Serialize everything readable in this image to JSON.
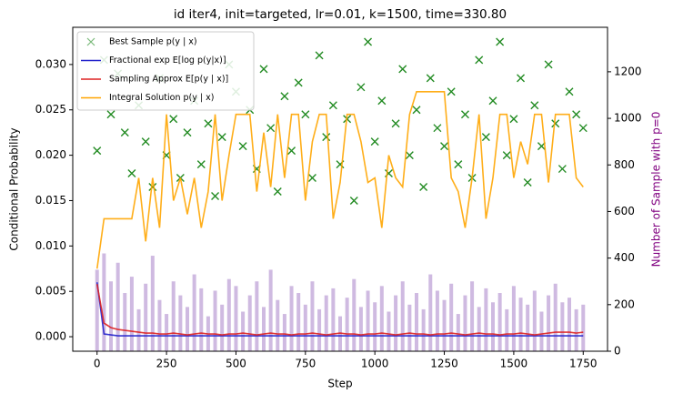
{
  "chart_data": {
    "type": "combo",
    "title": "id iter4, init=targeted, lr=0.01, k=1500, time=330.80",
    "x_label": "Step",
    "y_label": "Conditional Probability",
    "y2_label": "Number of Sample with p=0",
    "y2_label_color": "#800080",
    "xlim": [
      -87.5,
      1837.5
    ],
    "xticks": [
      0,
      250,
      500,
      750,
      1000,
      1250,
      1500,
      1750
    ],
    "ylim": [
      -0.0016,
      0.0341
    ],
    "yticks": [
      {
        "value": 0,
        "label": "0.000"
      },
      {
        "value": 0.005,
        "label": "0.005"
      },
      {
        "value": 0.01,
        "label": "0.010"
      },
      {
        "value": 0.015,
        "label": "0.015"
      },
      {
        "value": 0.02,
        "label": "0.020"
      },
      {
        "value": 0.025,
        "label": "0.025"
      },
      {
        "value": 0.03,
        "label": "0.030"
      }
    ],
    "y2lim": [
      0,
      1391
    ],
    "y2ticks": [
      0,
      200,
      400,
      600,
      800,
      1000,
      1200
    ],
    "legend": "upper left",
    "x": [
      0,
      25,
      50,
      75,
      100,
      125,
      150,
      175,
      200,
      225,
      250,
      275,
      300,
      325,
      350,
      375,
      400,
      425,
      450,
      475,
      500,
      525,
      550,
      575,
      600,
      625,
      650,
      675,
      700,
      725,
      750,
      775,
      800,
      825,
      850,
      875,
      900,
      925,
      950,
      975,
      1000,
      1025,
      1050,
      1075,
      1100,
      1125,
      1150,
      1175,
      1200,
      1225,
      1250,
      1275,
      1300,
      1325,
      1350,
      1375,
      1400,
      1425,
      1450,
      1475,
      1500,
      1525,
      1550,
      1575,
      1600,
      1625,
      1650,
      1675,
      1700,
      1725,
      1750
    ],
    "series": [
      {
        "kind": "bar",
        "axis": "y2",
        "color": "#9467bd",
        "values": [
          350,
          420,
          300,
          380,
          250,
          320,
          180,
          290,
          410,
          220,
          160,
          300,
          240,
          190,
          330,
          270,
          150,
          260,
          200,
          310,
          280,
          170,
          240,
          300,
          190,
          350,
          220,
          160,
          280,
          250,
          200,
          300,
          180,
          240,
          270,
          150,
          230,
          310,
          190,
          260,
          210,
          280,
          170,
          240,
          300,
          200,
          250,
          180,
          330,
          260,
          220,
          290,
          160,
          240,
          300,
          190,
          270,
          210,
          250,
          180,
          280,
          230,
          200,
          260,
          170,
          240,
          290,
          210,
          230,
          180,
          200
        ]
      },
      {
        "kind": "scatter",
        "name": "Best Sample p(y | x)",
        "color": "#228b22",
        "values": [
          0.0205,
          0.0305,
          0.0245,
          0.029,
          0.0225,
          0.018,
          0.0255,
          0.0215,
          0.0165,
          0.0285,
          0.02,
          0.024,
          0.0175,
          0.0225,
          0.026,
          0.019,
          0.0235,
          0.0155,
          0.022,
          0.03,
          0.027,
          0.021,
          0.025,
          0.0185,
          0.0295,
          0.023,
          0.016,
          0.0265,
          0.0205,
          0.028,
          0.0245,
          0.0175,
          0.031,
          0.022,
          0.0255,
          0.019,
          0.024,
          0.015,
          0.0275,
          0.0325,
          0.0215,
          0.026,
          0.018,
          0.0235,
          0.0295,
          0.02,
          0.025,
          0.0165,
          0.0285,
          0.023,
          0.021,
          0.027,
          0.019,
          0.0245,
          0.0175,
          0.0305,
          0.022,
          0.026,
          0.0325,
          0.02,
          0.024,
          0.0285,
          0.017,
          0.0255,
          0.021,
          0.03,
          0.0235,
          0.0185,
          0.027,
          0.0245,
          0.023
        ]
      },
      {
        "kind": "line",
        "name": "Fractional exp E[log p(y|x)]",
        "color": "#2222cc",
        "values": [
          0.006,
          0.0003,
          0.0002,
          0.0001,
          0.0001,
          0.0001,
          0.0001,
          0.0001,
          0.0001,
          0.0001,
          0.0001,
          0.0001,
          0.0001,
          0.0001,
          0.0001,
          0.0001,
          0.0001,
          0.0001,
          0.0001,
          0.0001,
          0.0001,
          0.0001,
          0.0001,
          0.0001,
          0.0001,
          0.0001,
          0.0001,
          0.0001,
          0.0001,
          0.0001,
          0.0001,
          0.0001,
          0.0001,
          0.0001,
          0.0001,
          0.0001,
          0.0001,
          0.0001,
          0.0001,
          0.0001,
          0.0001,
          0.0001,
          0.0001,
          0.0001,
          0.0001,
          0.0001,
          0.0001,
          0.0001,
          0.0001,
          0.0001,
          0.0001,
          0.0001,
          0.0001,
          0.0001,
          0.0001,
          0.0001,
          0.0001,
          0.0001,
          0.0001,
          0.0001,
          0.0001,
          0.0001,
          0.0001,
          0.0001,
          0.0001,
          0.0001,
          0.0001,
          0.0001,
          0.0001,
          0.0001,
          0.0001
        ]
      },
      {
        "kind": "line",
        "name": "Sampling Approx E[p(y | x)]",
        "color": "#dd2222",
        "values": [
          0.0058,
          0.0015,
          0.001,
          0.0008,
          0.0007,
          0.0006,
          0.0005,
          0.0004,
          0.0004,
          0.0003,
          0.0003,
          0.0004,
          0.0003,
          0.0002,
          0.0003,
          0.0004,
          0.0003,
          0.0003,
          0.0002,
          0.0003,
          0.0003,
          0.0004,
          0.0003,
          0.0002,
          0.0003,
          0.0004,
          0.0003,
          0.0003,
          0.0002,
          0.0003,
          0.0003,
          0.0004,
          0.0003,
          0.0002,
          0.0003,
          0.0004,
          0.0003,
          0.0003,
          0.0002,
          0.0003,
          0.0003,
          0.0004,
          0.0003,
          0.0002,
          0.0003,
          0.0004,
          0.0003,
          0.0003,
          0.0002,
          0.0003,
          0.0003,
          0.0004,
          0.0003,
          0.0002,
          0.0003,
          0.0004,
          0.0003,
          0.0003,
          0.0002,
          0.0003,
          0.0003,
          0.0004,
          0.0003,
          0.0002,
          0.0003,
          0.0004,
          0.0005,
          0.0005,
          0.0005,
          0.0004,
          0.0005
        ]
      },
      {
        "kind": "line",
        "name": "Integral Solution p(y | x)",
        "color": "#ffa500",
        "values": [
          0.0075,
          0.013,
          0.013,
          0.013,
          0.013,
          0.013,
          0.0175,
          0.0105,
          0.0175,
          0.012,
          0.0245,
          0.015,
          0.0175,
          0.0135,
          0.0175,
          0.012,
          0.016,
          0.0245,
          0.015,
          0.02,
          0.0245,
          0.0245,
          0.0245,
          0.016,
          0.0225,
          0.0165,
          0.0245,
          0.0175,
          0.0245,
          0.0245,
          0.015,
          0.0215,
          0.0245,
          0.0245,
          0.013,
          0.017,
          0.0245,
          0.0245,
          0.0215,
          0.017,
          0.0175,
          0.012,
          0.02,
          0.0175,
          0.0165,
          0.0245,
          0.027,
          0.027,
          0.027,
          0.027,
          0.027,
          0.0175,
          0.016,
          0.012,
          0.0175,
          0.0245,
          0.013,
          0.0175,
          0.0245,
          0.0245,
          0.0175,
          0.0215,
          0.019,
          0.0245,
          0.0245,
          0.017,
          0.0245,
          0.0245,
          0.0245,
          0.0175,
          0.0165
        ]
      }
    ]
  }
}
